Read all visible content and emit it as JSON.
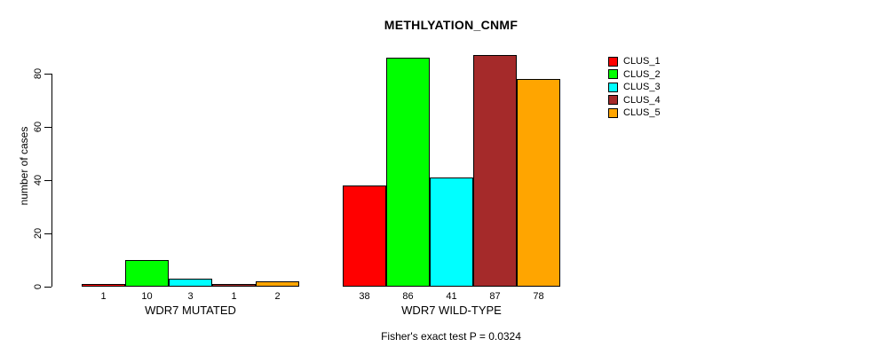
{
  "chart_data": {
    "type": "bar",
    "title": "METHLYATION_CNMF",
    "ylabel": "number of cases",
    "xlabel": "",
    "ylim": [
      0,
      88
    ],
    "yticks": [
      0,
      20,
      40,
      60,
      80
    ],
    "grid": false,
    "legend_position": "right-outside-top",
    "categories": [
      "WDR7 MUTATED",
      "WDR7 WILD-TYPE"
    ],
    "series": [
      {
        "name": "CLUS_1",
        "color": "#ff0000",
        "values": [
          1,
          38
        ]
      },
      {
        "name": "CLUS_2",
        "color": "#00ff00",
        "values": [
          10,
          86
        ]
      },
      {
        "name": "CLUS_3",
        "color": "#00ffff",
        "values": [
          3,
          41
        ]
      },
      {
        "name": "CLUS_4",
        "color": "#a52a2a",
        "values": [
          1,
          87
        ]
      },
      {
        "name": "CLUS_5",
        "color": "#ffa500",
        "values": [
          2,
          78
        ]
      }
    ],
    "groups": [
      {
        "label": "WDR7 MUTATED",
        "values": [
          1,
          10,
          3,
          1,
          2
        ],
        "value_labels": [
          "1",
          "10",
          "3",
          "1",
          "2"
        ]
      },
      {
        "label": "WDR7 WILD-TYPE",
        "values": [
          38,
          86,
          41,
          87,
          78
        ],
        "value_labels": [
          "38",
          "86",
          "41",
          "87",
          "78"
        ]
      }
    ],
    "annotation": "Fisher's exact test P = 0.0324",
    "colors": {
      "background": "#ffffff",
      "axis": "#000000",
      "bar_border": "#000000",
      "text": "#000000"
    }
  }
}
